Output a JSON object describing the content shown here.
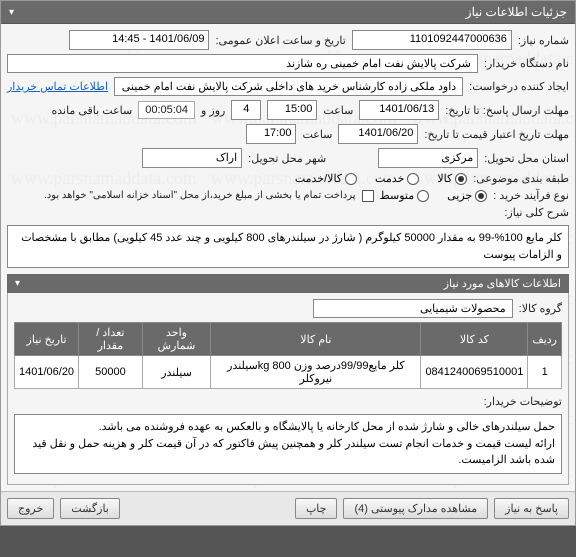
{
  "panel_title": "جزئیات اطلاعات نیاز",
  "fields": {
    "req_no_label": "شماره نیاز:",
    "req_no": "1101092447000636",
    "pub_datetime_label": "تاریخ و ساعت اعلان عمومی:",
    "pub_datetime": "1401/06/09 - 14:45",
    "org_label": "نام دستگاه خریدار:",
    "org": "شرکت پالایش نفت امام خمینی  ره  شازند",
    "requester_label": "ایجاد کننده درخواست:",
    "requester": "داود  ملکی زاده کارشناس خرید های داخلی  شرکت پالایش نفت امام خمینی",
    "contact_link": "اطلاعات تماس خریدار",
    "deadline_label": "مهلت ارسال پاسخ: تا تاریخ:",
    "deadline_date": "1401/06/13",
    "deadline_time_label": "ساعت",
    "deadline_time": "15:00",
    "day_label": "روز و",
    "days": "4",
    "countdown": "00:05:04",
    "remain_label": "ساعت باقی مانده",
    "validity_label": "مهلت تاریخ اعتبار قیمت تا تاریخ:",
    "validity_date": "1401/06/20",
    "validity_time": "17:00",
    "province_label": "استان محل تحویل:",
    "province": "مرکزی",
    "city_label": "شهر محل تحویل:",
    "city": "اراک",
    "category_label": "طبقه بندی موضوعی:",
    "cat_goods": "کالا",
    "cat_service": "خدمت",
    "cat_both": "کالا/خدمت",
    "purchase_type_label": "نوع فرآیند خرید :",
    "pt_partial": "جزیی",
    "pt_medium": "متوسط",
    "pay_note": "پرداخت تمام یا بخشی از مبلغ خرید،از محل \"اسناد خزانه اسلامی\" خواهد بود.",
    "desc_label": "شرح کلی نیاز:",
    "desc": "کلر مایع 100%-99 به مقدار 50000 کیلوگرم ( شارژ در سیلندرهای 800 کیلویی و چند عدد 45 کیلویی) مطابق با مشخصات و الزامات پیوست"
  },
  "items_header": "اطلاعات کالاهای مورد نیاز",
  "group_label": "گروه کالا:",
  "group_value": "محصولات شیمیایی",
  "table": {
    "headers": [
      "ردیف",
      "کد کالا",
      "نام کالا",
      "واحد شمارش",
      "تعداد / مقدار",
      "تاریخ نیاز"
    ],
    "rows": [
      [
        "1",
        "0841240069510001",
        "کلر مایع99/99درصد وزن kg 800سیلندر نیروکلر",
        "سیلندر",
        "50000",
        "1401/06/20"
      ]
    ]
  },
  "buyer_notes_label": "توضیحات خریدار:",
  "buyer_notes": "حمل سیلندرهای خالی و شارژ شده از محل کارخانه یا پالایشگاه و بالعکس به عهده فروشنده می باشد.\nارائه لیست قیمت و خدمات انجام تست سیلندر کلر و همچنین پیش فاکتور که در آن قیمت کلر و هزینه حمل و نقل قید شده باشد الزامیست.",
  "buttons": {
    "reply": "پاسخ به نیاز",
    "attachments": "مشاهده مدارک پیوستی (4)",
    "print": "چاپ",
    "back": "بازگشت",
    "exit": "خروج"
  },
  "colors": {
    "header_bg": "#6a6a6a",
    "link": "#1560bd"
  }
}
